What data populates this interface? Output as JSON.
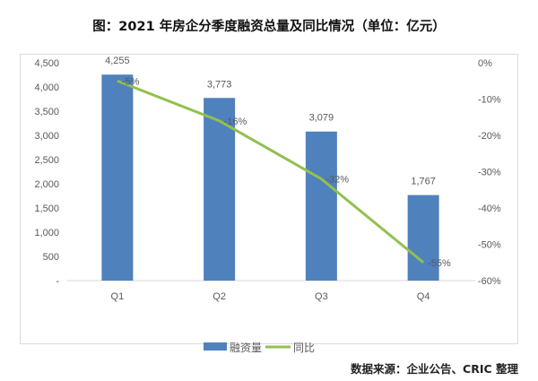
{
  "title": "图：2021 年房企分季度融资总量及同比情况（单位：亿元）",
  "source": "数据来源：企业公告、CRIC 整理",
  "chart_data": {
    "type": "bar+line",
    "categories": [
      "Q1",
      "Q2",
      "Q3",
      "Q4"
    ],
    "series": [
      {
        "name": "融资量",
        "type": "bar",
        "axis": "left",
        "color": "#4f81bd",
        "values": [
          4255,
          3773,
          3079,
          1767
        ],
        "labels": [
          "4,255",
          "3,773",
          "3,079",
          "1,767"
        ]
      },
      {
        "name": "同比",
        "type": "line",
        "axis": "right",
        "color": "#92c050",
        "values": [
          -5,
          -16,
          -32,
          -55
        ],
        "labels": [
          "-5%",
          "-16%",
          "-32%",
          "-55%"
        ]
      }
    ],
    "left_axis": {
      "range": [
        0,
        4500
      ],
      "ticks": [
        "-",
        "500",
        "1,000",
        "1,500",
        "2,000",
        "2,500",
        "3,000",
        "3,500",
        "4,000",
        "4,500"
      ]
    },
    "right_axis": {
      "range": [
        -60,
        0
      ],
      "ticks": [
        "-60%",
        "-50%",
        "-40%",
        "-30%",
        "-20%",
        "-10%",
        "0%"
      ]
    },
    "legend": "bottom",
    "grid": false
  }
}
